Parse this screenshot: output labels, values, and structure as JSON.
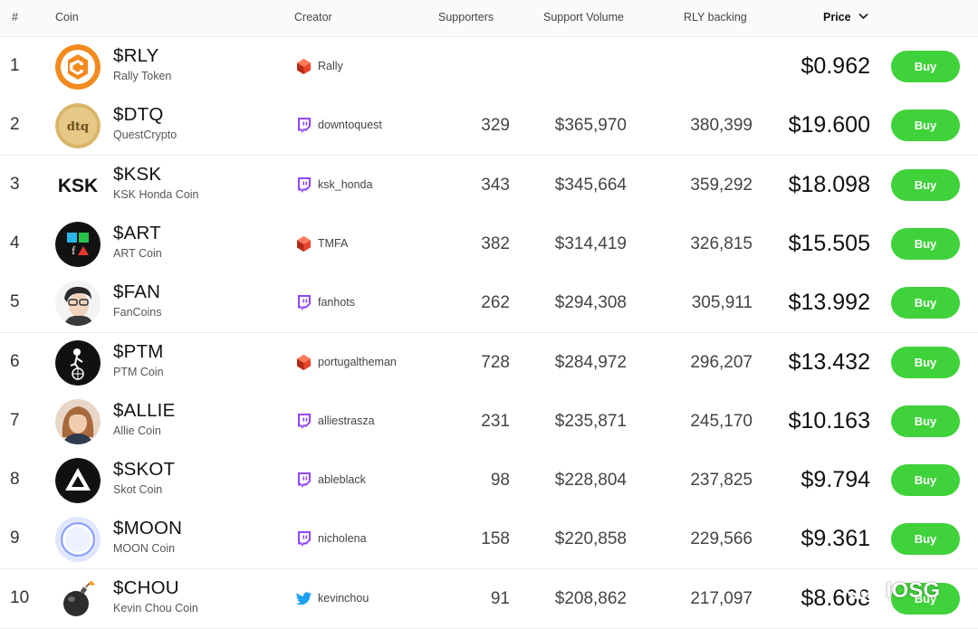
{
  "header": {
    "rank": "#",
    "coin": "Coin",
    "creator": "Creator",
    "supporters": "Supporters",
    "support_volume": "Support Volume",
    "rly_backing": "RLY backing",
    "price": "Price"
  },
  "buy_label": "Buy",
  "watermark": "IOSG",
  "colors": {
    "buy_button": "#3fd23a",
    "twitch": "#9146ff",
    "rally": "#e8442c",
    "twitter": "#1da1f2"
  },
  "rows": [
    {
      "rank": "1",
      "symbol": "$RLY",
      "name": "Rally Token",
      "creator": "Rally",
      "creator_icon": "rally-icon",
      "supporters": "",
      "volume": "",
      "backing": "",
      "price": "$0.962",
      "avatar": "rally-logo"
    },
    {
      "rank": "2",
      "symbol": "$DTQ",
      "name": "QuestCrypto",
      "creator": "downtoquest",
      "creator_icon": "twitch-icon",
      "supporters": "329",
      "volume": "$365,970",
      "backing": "380,399",
      "price": "$19.600",
      "avatar": "dtq-logo"
    },
    {
      "rank": "3",
      "symbol": "$KSK",
      "name": "KSK Honda Coin",
      "creator": "ksk_honda",
      "creator_icon": "twitch-icon",
      "supporters": "343",
      "volume": "$345,664",
      "backing": "359,292",
      "price": "$18.098",
      "avatar": "ksk-logo",
      "avatar_text": "KSK"
    },
    {
      "rank": "4",
      "symbol": "$ART",
      "name": "ART Coin",
      "creator": "TMFA",
      "creator_icon": "rally-icon",
      "supporters": "382",
      "volume": "$314,419",
      "backing": "326,815",
      "price": "$15.505",
      "avatar": "art-logo"
    },
    {
      "rank": "5",
      "symbol": "$FAN",
      "name": "FanCoins",
      "creator": "fanhots",
      "creator_icon": "twitch-icon",
      "supporters": "262",
      "volume": "$294,308",
      "backing": "305,911",
      "price": "$13.992",
      "avatar": "fan-photo"
    },
    {
      "rank": "6",
      "symbol": "$PTM",
      "name": "PTM Coin",
      "creator": "portugaltheman",
      "creator_icon": "rally-icon",
      "supporters": "728",
      "volume": "$284,972",
      "backing": "296,207",
      "price": "$13.432",
      "avatar": "ptm-logo"
    },
    {
      "rank": "7",
      "symbol": "$ALLIE",
      "name": "Allie Coin",
      "creator": "alliestrasza",
      "creator_icon": "twitch-icon",
      "supporters": "231",
      "volume": "$235,871",
      "backing": "245,170",
      "price": "$10.163",
      "avatar": "allie-photo"
    },
    {
      "rank": "8",
      "symbol": "$SKOT",
      "name": "Skot Coin",
      "creator": "ableblack",
      "creator_icon": "twitch-icon",
      "supporters": "98",
      "volume": "$228,804",
      "backing": "237,825",
      "price": "$9.794",
      "avatar": "skot-logo"
    },
    {
      "rank": "9",
      "symbol": "$MOON",
      "name": "MOON Coin",
      "creator": "nicholena",
      "creator_icon": "twitch-icon",
      "supporters": "158",
      "volume": "$220,858",
      "backing": "229,566",
      "price": "$9.361",
      "avatar": "moon-logo"
    },
    {
      "rank": "10",
      "symbol": "$CHOU",
      "name": "Kevin Chou Coin",
      "creator": "kevinchou",
      "creator_icon": "twitter-icon",
      "supporters": "91",
      "volume": "$208,862",
      "backing": "217,097",
      "price": "$8.668",
      "avatar": "chou-logo"
    }
  ]
}
